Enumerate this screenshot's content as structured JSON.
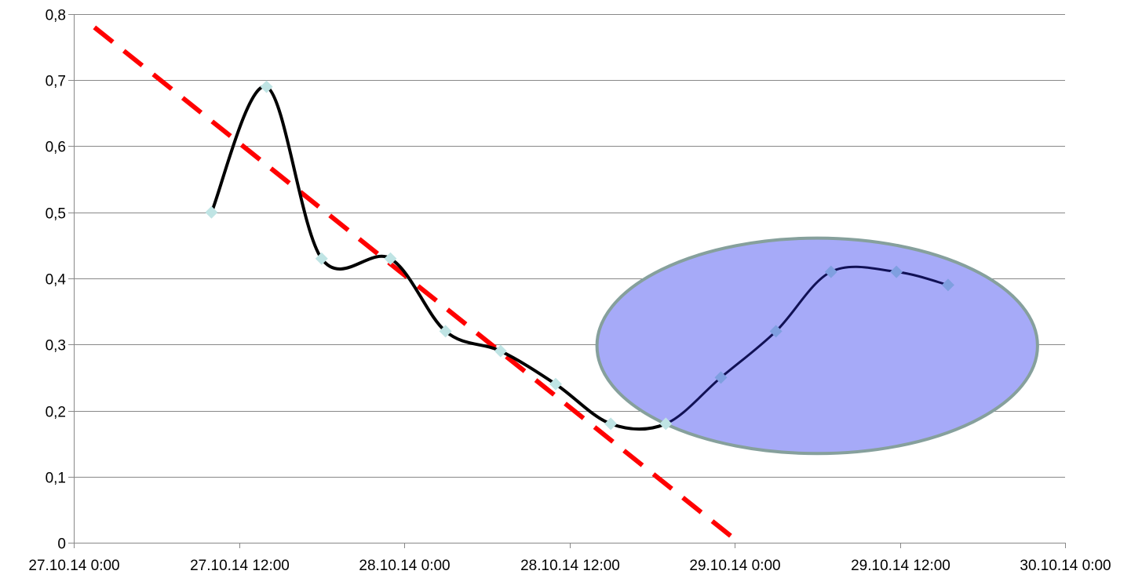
{
  "chart_data": {
    "type": "line",
    "title": "",
    "xlabel": "",
    "ylabel": "",
    "x_ticks": [
      "27.10.14 0:00",
      "27.10.14 12:00",
      "28.10.14 0:00",
      "28.10.14 12:00",
      "29.10.14 0:00",
      "29.10.14 12:00",
      "30.10.14 0:00"
    ],
    "x_range": [
      "27.10.14 0:00",
      "30.10.14 0:00"
    ],
    "y_ticks": [
      "0",
      "0,1",
      "0,2",
      "0,3",
      "0,4",
      "0,5",
      "0,6",
      "0,7",
      "0,8"
    ],
    "ylim": [
      0,
      0.8
    ],
    "grid": "horizontal",
    "legend": "none",
    "series": [
      {
        "x": [
          "27.10.14 10:00",
          "27.10.14 14:00",
          "27.10.14 18:00",
          "27.10.14 23:00",
          "28.10.14 3:00",
          "28.10.14 7:00",
          "28.10.14 11:00",
          "28.10.14 15:00",
          "28.10.14 19:00",
          "28.10.14 23:00",
          "29.10.14 3:00",
          "29.10.14 7:00",
          "29.10.14 11:45",
          "29.10.14 15:30"
        ],
        "y": [
          0.5,
          0.69,
          0.43,
          0.43,
          0.32,
          0.29,
          0.24,
          0.18,
          0.18,
          0.25,
          0.32,
          0.41,
          0.41,
          0.39
        ],
        "smooth": true,
        "line_color": "#000000",
        "highlight_from_point": 9
      }
    ],
    "trendline": {
      "x": [
        "27.10.14 1:30",
        "29.10.14 0:20"
      ],
      "y": [
        0.78,
        0.0
      ],
      "style": "dashed",
      "color": "#ff0000"
    },
    "highlight_ellipse": {
      "x_center": "29.10.14 6:00",
      "y_center": 0.298,
      "x_halfwidth_hours": 16,
      "y_halfheight": 0.163,
      "fill": "#a6aaf8",
      "stroke": "#86a09c"
    },
    "colors": {
      "marker_normal": "#bfe4e4",
      "marker_highlight": "#7f9fe0",
      "highlight_line": "#111155",
      "gridline": "#888888",
      "axis": "#888888"
    }
  }
}
